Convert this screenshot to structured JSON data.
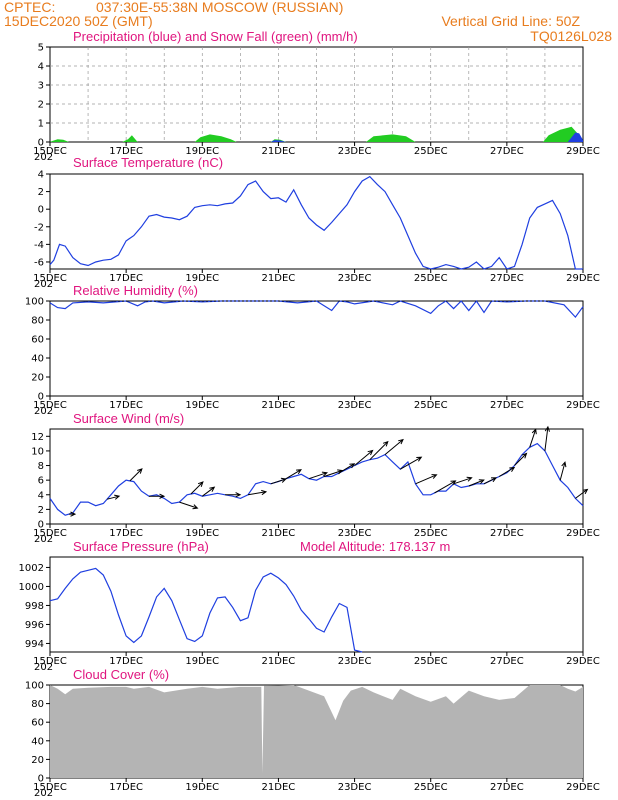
{
  "header": {
    "source": "CPTEC:",
    "location": "037:30E-55:38N   MOSCOW (RUSSIAN)",
    "init_time": "15DEC2020 50Z (GMT)",
    "grid_info": "Vertical Grid Line: 50Z",
    "run_id": "TQ0126L028"
  },
  "x_ticks": [
    "15DEC",
    "17DEC",
    "19DEC",
    "21DEC",
    "23DEC",
    "25DEC",
    "27DEC",
    "29DEC"
  ],
  "x_tick_cut": "202",
  "colors": {
    "header": "#e87c1e",
    "title": "#e0157f",
    "series": "#1f3fe0",
    "snow": "#22cc22",
    "precip": "#1f3fe0",
    "cloud": "#b4b4b4",
    "arrows": "#000000"
  },
  "chart_data": [
    {
      "type": "area",
      "title": "Precipitation (blue) and Snow Fall (green) (mm/h)",
      "y_ticks": [
        "0",
        "1",
        "2",
        "3",
        "4",
        "5"
      ],
      "ylim": [
        0,
        5
      ],
      "grid": true,
      "snow": {
        "x": [
          0,
          0.05,
          0.2,
          0.35,
          0.5,
          1.9,
          2.05,
          2.15,
          2.3,
          3.8,
          3.95,
          4.2,
          4.5,
          4.75,
          4.9,
          5.8,
          5.9,
          6.05,
          6.2,
          8.3,
          8.5,
          9.0,
          9.35,
          9.6,
          12.95,
          13.1,
          13.4,
          13.7,
          13.9,
          14.0
        ],
        "y": [
          0,
          0.05,
          0.15,
          0.12,
          0,
          0,
          0.15,
          0.35,
          0,
          0,
          0.25,
          0.4,
          0.3,
          0.15,
          0,
          0,
          0.15,
          0.12,
          0,
          0,
          0.3,
          0.4,
          0.3,
          0,
          0,
          0.35,
          0.65,
          0.8,
          0.35,
          0.1
        ]
      },
      "precip": {
        "x": [
          5.8,
          5.9,
          6.05,
          6.2,
          13.6,
          13.7,
          13.8,
          13.9,
          14.0
        ],
        "y": [
          0,
          0.1,
          0.08,
          0,
          0,
          0.25,
          0.5,
          0.45,
          0.1
        ]
      }
    },
    {
      "type": "line",
      "title": "Surface Temperature (nC)",
      "y_ticks": [
        "4",
        "2",
        "0",
        "-2",
        "-4",
        "-6"
      ],
      "ylim": [
        -6.8,
        4
      ],
      "grid": false,
      "x": [
        0,
        0.1,
        0.25,
        0.4,
        0.6,
        0.8,
        1.0,
        1.2,
        1.4,
        1.6,
        1.8,
        2.0,
        2.2,
        2.4,
        2.6,
        2.8,
        3.0,
        3.2,
        3.4,
        3.6,
        3.8,
        4.0,
        4.2,
        4.4,
        4.6,
        4.8,
        5.0,
        5.2,
        5.4,
        5.6,
        5.8,
        6.0,
        6.2,
        6.4,
        6.6,
        6.8,
        7.0,
        7.2,
        7.4,
        7.6,
        7.8,
        8.0,
        8.2,
        8.4,
        8.6,
        8.8,
        9.0,
        9.2,
        9.4,
        9.6,
        9.8,
        10.0,
        10.2,
        10.4,
        10.6,
        10.8,
        11.0,
        11.2,
        11.4,
        11.6,
        11.8,
        12.0,
        12.2,
        12.4,
        12.6,
        12.8,
        13.0,
        13.2,
        13.4,
        13.6,
        13.8,
        14.0
      ],
      "y": [
        -6.3,
        -5.8,
        -4.0,
        -4.2,
        -5.5,
        -6.2,
        -6.4,
        -6.0,
        -5.8,
        -5.7,
        -5.2,
        -3.6,
        -3.0,
        -2.0,
        -0.8,
        -0.6,
        -0.9,
        -1.0,
        -1.2,
        -0.8,
        0.2,
        0.4,
        0.5,
        0.4,
        0.6,
        0.7,
        1.5,
        2.8,
        3.2,
        2.0,
        1.2,
        1.3,
        0.8,
        2.2,
        0.5,
        -1.0,
        -1.8,
        -2.4,
        -1.5,
        -0.5,
        0.5,
        2.0,
        3.2,
        3.7,
        2.8,
        2.0,
        0.5,
        -1.0,
        -3.0,
        -5.0,
        -6.5,
        -6.8,
        -6.6,
        -6.3,
        -6.5,
        -6.8,
        -6.6,
        -6.0,
        -6.8,
        -6.5,
        -5.5,
        -6.8,
        -6.5,
        -4.0,
        -1.0,
        0.2,
        0.6,
        1.0,
        -0.5,
        -3.0,
        -6.8,
        -6.8
      ]
    },
    {
      "type": "line",
      "title": "Relative Humidity (%)",
      "y_ticks": [
        "100",
        "80",
        "60",
        "40",
        "20",
        "0"
      ],
      "ylim": [
        0,
        100
      ],
      "grid": false,
      "x": [
        0,
        0.2,
        0.4,
        0.6,
        1.0,
        1.4,
        2.0,
        2.3,
        2.5,
        2.7,
        3.0,
        3.5,
        4.0,
        4.5,
        5.0,
        5.5,
        6.0,
        6.5,
        7.0,
        7.4,
        7.6,
        7.8,
        8.0,
        8.5,
        9.0,
        9.2,
        9.6,
        10.0,
        10.2,
        10.4,
        10.6,
        10.8,
        11.0,
        11.2,
        11.4,
        11.6,
        12.0,
        12.5,
        13.0,
        13.5,
        13.8,
        14.0
      ],
      "y": [
        98,
        93,
        92,
        98,
        99,
        98,
        100,
        95,
        99,
        100,
        98,
        100,
        99,
        100,
        100,
        100,
        100,
        98,
        100,
        90,
        100,
        99,
        97,
        100,
        96,
        100,
        95,
        87,
        95,
        100,
        92,
        100,
        90,
        100,
        88,
        100,
        99,
        100,
        100,
        96,
        83,
        94
      ]
    },
    {
      "type": "line",
      "title": "Surface Wind (m/s)",
      "y_ticks": [
        "12",
        "10",
        "8",
        "6",
        "4",
        "2",
        "0"
      ],
      "ylim": [
        0,
        13
      ],
      "grid": false,
      "x": [
        0,
        0.2,
        0.4,
        0.6,
        0.8,
        1.0,
        1.2,
        1.4,
        1.6,
        1.8,
        2.0,
        2.2,
        2.4,
        2.6,
        2.8,
        3.0,
        3.2,
        3.4,
        3.6,
        3.8,
        4.0,
        4.2,
        4.4,
        4.6,
        4.8,
        5.0,
        5.2,
        5.4,
        5.6,
        5.8,
        6.0,
        6.2,
        6.4,
        6.6,
        6.8,
        7.0,
        7.2,
        7.4,
        7.6,
        7.8,
        8.0,
        8.2,
        8.4,
        8.6,
        8.8,
        9.0,
        9.2,
        9.4,
        9.6,
        9.8,
        10.0,
        10.2,
        10.4,
        10.6,
        10.8,
        11.0,
        11.2,
        11.4,
        11.6,
        11.8,
        12.0,
        12.2,
        12.4,
        12.6,
        12.8,
        13.0,
        13.2,
        13.4,
        13.6,
        13.8,
        14.0
      ],
      "y": [
        3.5,
        2.0,
        1.2,
        1.5,
        3.0,
        3.0,
        2.5,
        2.8,
        4.0,
        5.2,
        6.0,
        5.8,
        4.5,
        3.8,
        4.0,
        3.5,
        2.8,
        3.0,
        4.0,
        4.2,
        3.8,
        4.0,
        4.2,
        4.0,
        3.8,
        3.5,
        4.0,
        5.5,
        5.8,
        5.5,
        5.8,
        6.2,
        6.5,
        6.8,
        6.2,
        6.0,
        6.5,
        6.5,
        7.0,
        7.5,
        8.0,
        8.5,
        8.8,
        9.0,
        9.5,
        8.5,
        7.5,
        8.5,
        5.5,
        4.0,
        4.0,
        4.5,
        4.5,
        5.5,
        5.0,
        5.2,
        5.5,
        5.5,
        6.0,
        6.5,
        7.0,
        8.0,
        9.5,
        10.5,
        11.0,
        10.0,
        8.0,
        6.0,
        5.0,
        3.5,
        2.5
      ]
    },
    {
      "type": "line",
      "title": "Surface Pressure (hPa)",
      "annotation": "Model Altitude: 178.137 m",
      "y_ticks": [
        "1002",
        "1000",
        "998",
        "996",
        "994"
      ],
      "ylim": [
        993.1,
        1003.1
      ],
      "grid": false,
      "x": [
        0,
        0.2,
        0.4,
        0.6,
        0.8,
        1.0,
        1.2,
        1.4,
        1.6,
        1.8,
        2.0,
        2.2,
        2.4,
        2.6,
        2.8,
        3.0,
        3.2,
        3.4,
        3.6,
        3.8,
        4.0,
        4.2,
        4.4,
        4.6,
        4.8,
        5.0,
        5.2,
        5.4,
        5.6,
        5.8,
        6.0,
        6.2,
        6.4,
        6.6,
        6.8,
        7.0,
        7.2,
        7.4,
        7.6,
        7.8,
        8.0,
        8.2
      ],
      "y": [
        998.5,
        998.7,
        999.8,
        1000.8,
        1001.5,
        1001.7,
        1001.9,
        1001.2,
        999.5,
        997.0,
        994.8,
        994.1,
        994.8,
        996.8,
        998.9,
        999.8,
        998.5,
        996.5,
        994.5,
        994.2,
        994.8,
        997.2,
        998.8,
        998.9,
        997.8,
        996.4,
        996.7,
        999.6,
        1001.0,
        1001.4,
        1000.9,
        1000.2,
        999.0,
        997.5,
        996.6,
        995.6,
        995.2,
        996.8,
        998.2,
        997.8,
        993.3,
        993.0
      ]
    },
    {
      "type": "area",
      "title": "Cloud Cover (%)",
      "y_ticks": [
        "100",
        "80",
        "60",
        "40",
        "20",
        "0"
      ],
      "ylim": [
        0,
        100
      ],
      "grid": false,
      "x": [
        0,
        0.2,
        0.4,
        0.6,
        1.0,
        1.6,
        2.0,
        2.2,
        2.6,
        3.0,
        3.6,
        4.0,
        4.4,
        5.0,
        5.55,
        5.58,
        5.62,
        5.7,
        6.4,
        7.2,
        7.5,
        7.7,
        7.9,
        8.2,
        8.5,
        9.0,
        9.2,
        9.6,
        10.0,
        10.4,
        10.6,
        11.0,
        11.4,
        11.8,
        12.2,
        12.6,
        13.0,
        13.4,
        13.6,
        13.8,
        14.0
      ],
      "y": [
        100,
        96,
        90,
        96,
        97,
        98,
        98,
        96,
        98,
        92,
        96,
        98,
        96,
        98,
        98,
        5,
        99,
        99,
        100,
        88,
        62,
        83,
        94,
        98,
        92,
        84,
        96,
        88,
        82,
        88,
        80,
        94,
        88,
        84,
        86,
        100,
        100,
        100,
        96,
        93,
        98
      ]
    }
  ],
  "wind_vectors": {
    "note_units": "m/s",
    "x": [
      0.5,
      1.5,
      2.1,
      2.6,
      3.4,
      3.7,
      4.0,
      4.6,
      5.2,
      5.8,
      6.2,
      6.8,
      7.2,
      7.6,
      8.0,
      8.4,
      8.8,
      9.2,
      9.6,
      10.1,
      10.6,
      11.0,
      11.4,
      11.8,
      12.2,
      12.6,
      13.0,
      13.4,
      13.8
    ],
    "u": [
      1.0,
      2.0,
      2.0,
      2.5,
      3.0,
      2.0,
      2.0,
      2.5,
      3.0,
      2.5,
      2.5,
      3.0,
      3.0,
      2.5,
      3.0,
      3.0,
      3.0,
      3.5,
      3.5,
      3.5,
      3.0,
      2.5,
      2.0,
      2.5,
      2.0,
      1.0,
      0.5,
      0.8,
      2.0
    ],
    "v": [
      0.0,
      0.5,
      2.0,
      0.0,
      -1.0,
      2.0,
      1.5,
      0.0,
      0.5,
      0.8,
      1.5,
      1.0,
      1.0,
      1.5,
      2.5,
      3.0,
      2.5,
      2.0,
      1.5,
      2.0,
      1.0,
      1.0,
      1.0,
      1.5,
      2.0,
      3.0,
      4.0,
      3.0,
      1.5
    ]
  }
}
